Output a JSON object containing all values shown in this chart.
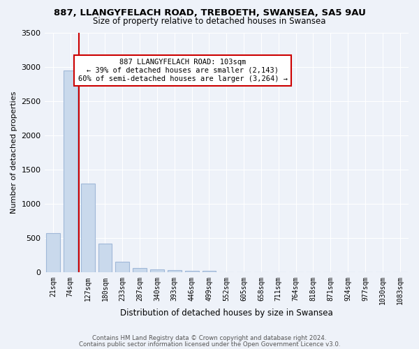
{
  "title": "887, LLANGYFELACH ROAD, TREBOETH, SWANSEA, SA5 9AU",
  "subtitle": "Size of property relative to detached houses in Swansea",
  "xlabel": "Distribution of detached houses by size in Swansea",
  "ylabel": "Number of detached properties",
  "bar_color": "#c9d9ec",
  "bar_edge_color": "#a0b8d8",
  "bg_color": "#eef2f9",
  "fig_bg_color": "#eef2f9",
  "grid_color": "#ffffff",
  "categories": [
    "21sqm",
    "74sqm",
    "127sqm",
    "180sqm",
    "233sqm",
    "287sqm",
    "340sqm",
    "393sqm",
    "446sqm",
    "499sqm",
    "552sqm",
    "605sqm",
    "658sqm",
    "711sqm",
    "764sqm",
    "818sqm",
    "871sqm",
    "924sqm",
    "977sqm",
    "1030sqm",
    "1083sqm"
  ],
  "values": [
    570,
    2950,
    1300,
    420,
    155,
    70,
    45,
    35,
    30,
    25,
    0,
    0,
    0,
    0,
    0,
    0,
    0,
    0,
    0,
    0,
    0
  ],
  "red_line_x": 1.5,
  "annotation_text": "887 LLANGYFELACH ROAD: 103sqm\n← 39% of detached houses are smaller (2,143)\n60% of semi-detached houses are larger (3,264) →",
  "annotation_box_color": "#ffffff",
  "annotation_box_edge": "#cc0000",
  "red_line_color": "#cc0000",
  "footer1": "Contains HM Land Registry data © Crown copyright and database right 2024.",
  "footer2": "Contains public sector information licensed under the Open Government Licence v3.0.",
  "ylim": [
    0,
    3500
  ],
  "yticks": [
    0,
    500,
    1000,
    1500,
    2000,
    2500,
    3000,
    3500
  ]
}
